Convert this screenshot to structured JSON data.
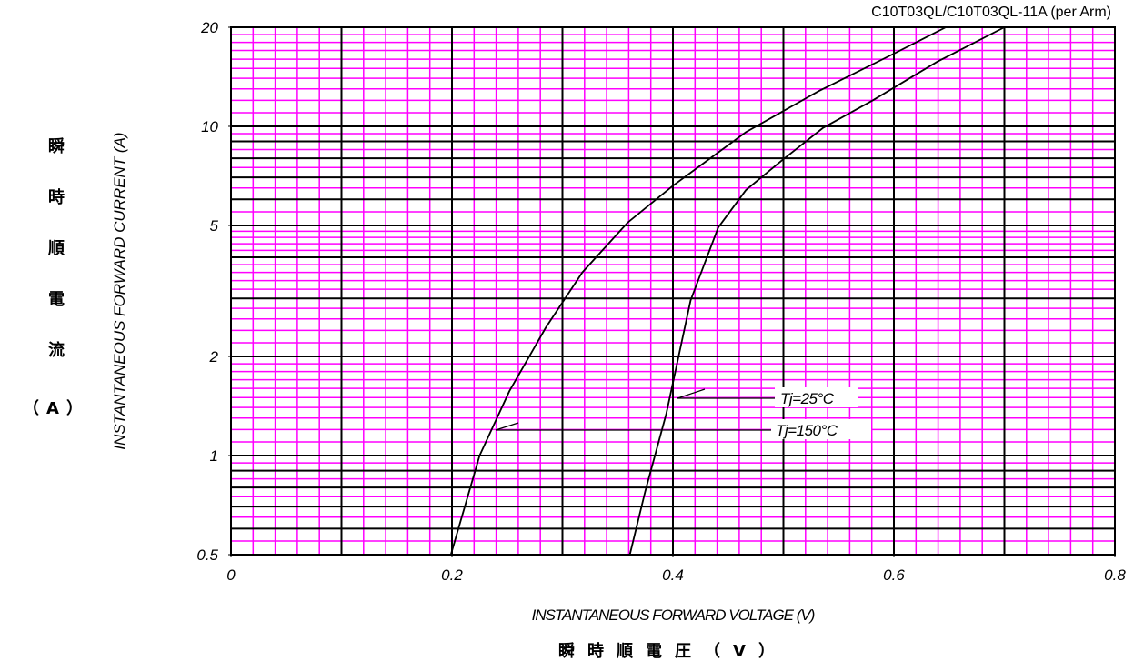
{
  "chart_data": {
    "type": "line",
    "title": "C10T03QL/C10T03QL-11A (per Arm)",
    "x_label": "INSTANTANEOUS FORWARD VOLTAGE (V)",
    "x_label_jp": "瞬時順電圧（V）",
    "y_label": "INSTANTANEOUS FORWARD CURRENT (A)",
    "y_label_jp": [
      "瞬",
      "時",
      "順",
      "電",
      "流",
      "（A）"
    ],
    "xlim": [
      0,
      0.8
    ],
    "xticks": [
      0,
      0.2,
      0.4,
      0.6,
      0.8
    ],
    "ylim": [
      0.5,
      20
    ],
    "yticks": [
      0.5,
      1,
      2,
      5,
      10,
      20
    ],
    "log_y": true,
    "grid": true,
    "grid_major_color": "#000000",
    "grid_minor_color": "#ff00ff",
    "x_grid_major": [
      0,
      0.1,
      0.2,
      0.3,
      0.4,
      0.5,
      0.6,
      0.7,
      0.8
    ],
    "x_grid_minor": [
      0.02,
      0.04,
      0.06,
      0.08,
      0.12,
      0.14,
      0.16,
      0.18,
      0.22,
      0.24,
      0.26,
      0.28,
      0.32,
      0.34,
      0.36,
      0.38,
      0.42,
      0.44,
      0.46,
      0.48,
      0.52,
      0.54,
      0.56,
      0.58,
      0.62,
      0.64,
      0.66,
      0.68,
      0.72,
      0.74,
      0.76,
      0.78
    ],
    "y_grid_major": [
      0.5,
      0.6,
      0.7,
      0.8,
      0.9,
      1,
      2,
      3,
      4,
      5,
      6,
      7,
      8,
      9,
      10,
      20
    ],
    "y_grid_minor": [
      0.55,
      0.65,
      0.75,
      0.85,
      0.95,
      1.1,
      1.2,
      1.3,
      1.4,
      1.5,
      1.6,
      1.7,
      1.8,
      1.9,
      2.2,
      2.4,
      2.6,
      2.8,
      3.2,
      3.4,
      3.6,
      3.8,
      4.2,
      4.4,
      4.6,
      4.8,
      5.5,
      6.5,
      7.5,
      8.5,
      9.5,
      11,
      12,
      13,
      14,
      15,
      16,
      17,
      18,
      19
    ],
    "series": [
      {
        "name": "Tj=25°C",
        "color": "#000000",
        "x": [
          0.361,
          0.375,
          0.394,
          0.416,
          0.441,
          0.466,
          0.499,
          0.536,
          0.581,
          0.639,
          0.7
        ],
        "values": [
          0.5,
          0.78,
          1.34,
          2.96,
          4.93,
          6.4,
          7.9,
          9.9,
          12,
          15.7,
          20
        ]
      },
      {
        "name": "Tj=150°C",
        "color": "#000000",
        "x": [
          0.199,
          0.225,
          0.252,
          0.285,
          0.318,
          0.359,
          0.4,
          0.466,
          0.532,
          0.598,
          0.647
        ],
        "values": [
          0.5,
          1.0,
          1.57,
          2.45,
          3.6,
          5.1,
          6.6,
          9.6,
          12.8,
          16.5,
          20
        ]
      }
    ]
  }
}
